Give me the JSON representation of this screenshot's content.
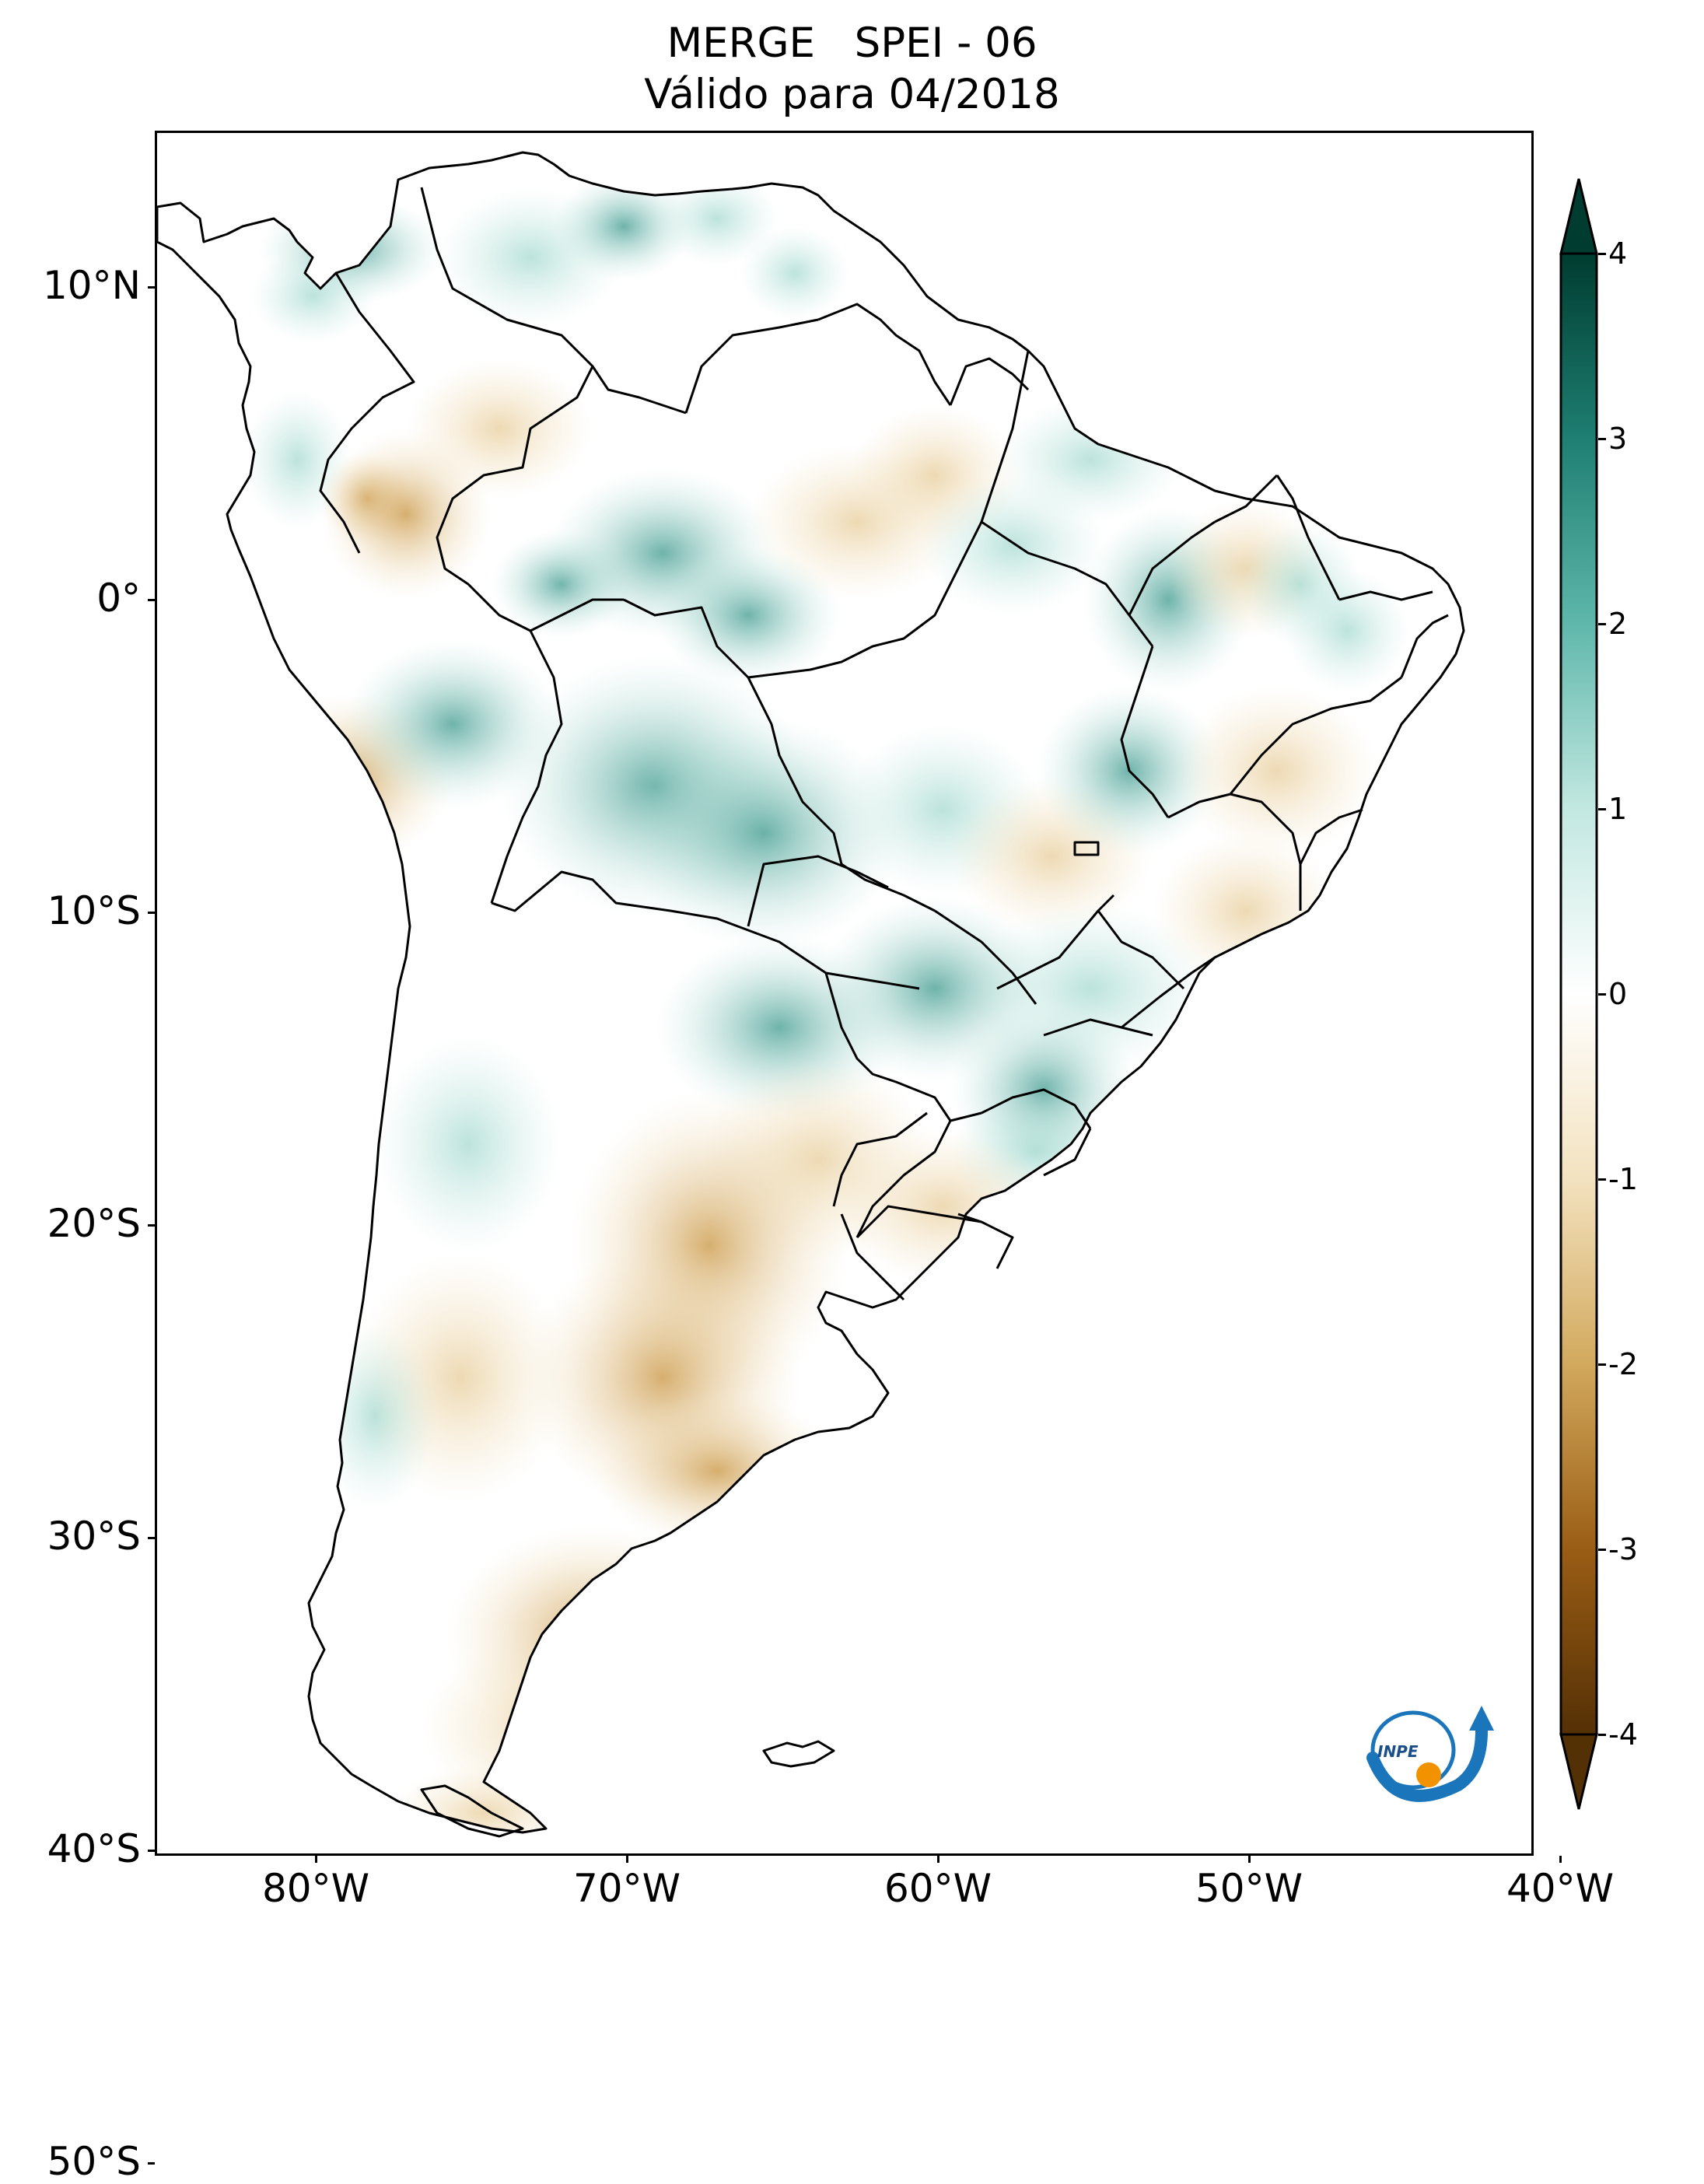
{
  "title": {
    "line1": "MERGE   SPEI - 06",
    "line2": "Válido para 04/2018"
  },
  "axes": {
    "x_tick_labels": [
      "80°W",
      "70°W",
      "60°W",
      "50°W",
      "40°W"
    ],
    "x_tick_values": [
      -80,
      -70,
      -60,
      -50,
      -40
    ],
    "y_tick_labels": [
      "10°N",
      "0°",
      "10°S",
      "20°S",
      "30°S",
      "40°S",
      "50°S"
    ],
    "y_tick_values": [
      10,
      0,
      -10,
      -20,
      -30,
      -40,
      -50
    ],
    "lon_range": [
      -85,
      -30
    ],
    "lat_range": [
      -56,
      13
    ]
  },
  "colorbar": {
    "tick_labels": [
      "4",
      "3",
      "2",
      "1",
      "0",
      "-1",
      "-2",
      "-3",
      "-4"
    ],
    "tick_values": [
      4,
      3,
      2,
      1,
      0,
      -1,
      -2,
      -3,
      -4
    ],
    "range": [
      -4,
      4
    ],
    "extend": "both",
    "colormap": "BrBG",
    "colors": {
      "wet_max": "#003c30",
      "wet_strong": "#1e7f72",
      "wet_mid": "#5fb7ab",
      "wet_light": "#c2e8e1",
      "neutral": "#ffffff",
      "dry_light": "#f3e2bf",
      "dry_mid": "#d2a95d",
      "dry_strong": "#9a5d15",
      "dry_max": "#543005"
    }
  },
  "logo": {
    "text": "INPE",
    "colors": {
      "blue": "#1b75bb",
      "orange": "#f39200"
    }
  }
}
